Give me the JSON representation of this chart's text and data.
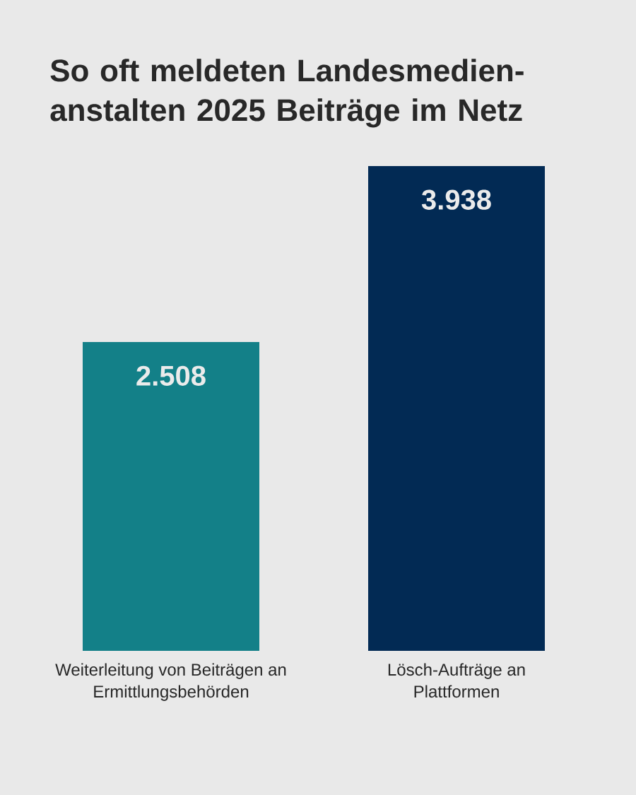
{
  "chart_data": {
    "type": "bar",
    "title": "So oft meldeten Landesmedien-anstalten 2025 Beiträge im Netz",
    "categories": [
      "Weiterleitung von Beiträgen an Ermittlungsbehörden",
      "Lösch-Aufträge an Plattformen"
    ],
    "values": [
      2508,
      3938
    ],
    "value_labels": [
      "2.508",
      "3.938"
    ],
    "colors": [
      "#138088",
      "#022a54"
    ]
  }
}
